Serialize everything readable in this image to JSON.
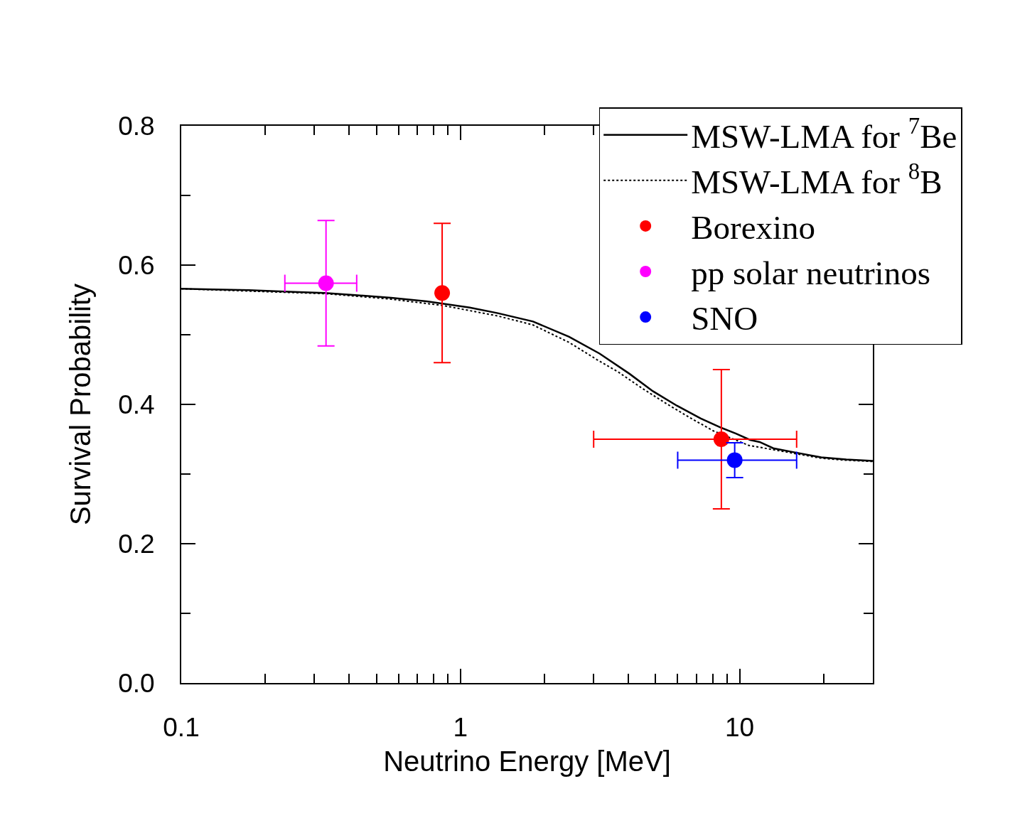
{
  "chart_data": {
    "type": "line",
    "xlabel": "Neutrino Energy [MeV]",
    "ylabel": "Survival Probability",
    "log": "x",
    "xlim": [
      0.1,
      30
    ],
    "ylim": [
      0,
      0.8
    ],
    "xticks": [
      0.1,
      {
        "value": 0.2,
        "label": null
      },
      {
        "value": 0.3,
        "label": null
      },
      {
        "value": 0.4,
        "label": null
      },
      {
        "value": 0.5,
        "label": null
      },
      {
        "value": 0.6,
        "label": null
      },
      {
        "value": 0.7,
        "label": null
      },
      {
        "value": 0.8,
        "label": null
      },
      {
        "value": 0.9,
        "label": null
      },
      1,
      {
        "value": 2,
        "label": null
      },
      {
        "value": 3,
        "label": null
      },
      {
        "value": 4,
        "label": null
      },
      {
        "value": 5,
        "label": null
      },
      {
        "value": 6,
        "label": null
      },
      {
        "value": 7,
        "label": null
      },
      {
        "value": 8,
        "label": null
      },
      {
        "value": 9,
        "label": null
      },
      10,
      {
        "value": 20,
        "label": null
      }
    ],
    "yticks": [
      {
        "value": 0,
        "label": "0.0"
      },
      {
        "value": 0.1,
        "label": null
      },
      0.2,
      {
        "value": 0.3,
        "label": null
      },
      0.4,
      {
        "value": 0.5,
        "label": null
      },
      0.6,
      {
        "value": 0.7,
        "label": null
      },
      0.8
    ],
    "legend": "top right",
    "series": [
      {
        "name": "MSW-LMA for $^{7}$Be",
        "color": "#000000",
        "line_style": "solid",
        "x": [
          0.1,
          0.13,
          0.175,
          0.234,
          0.327,
          0.421,
          0.565,
          0.757,
          1.08,
          1.36,
          1.82,
          2.45,
          3.15,
          4.03,
          4.89,
          5.97,
          7.24,
          8.53,
          9.71,
          10.9,
          11.8,
          13.2,
          15.8,
          19.6,
          24.1,
          30
        ],
        "values": [
          0.566,
          0.565,
          0.564,
          0.562,
          0.56,
          0.557,
          0.553,
          0.548,
          0.539,
          0.531,
          0.519,
          0.497,
          0.473,
          0.444,
          0.419,
          0.398,
          0.38,
          0.367,
          0.358,
          0.349,
          0.346,
          0.337,
          0.331,
          0.324,
          0.321,
          0.319
        ]
      },
      {
        "name": "MSW-LMA for $^{8}$B",
        "color": "#000000",
        "line_style": "dotted",
        "x": [
          0.1,
          0.327,
          0.565,
          0.866,
          1.36,
          1.82,
          2.45,
          3.09,
          3.69,
          4.48,
          5.47,
          6.63,
          8.05,
          10.8,
          13.2,
          16.0,
          19.4,
          23.7,
          30
        ],
        "values": [
          0.566,
          0.559,
          0.551,
          0.542,
          0.527,
          0.514,
          0.489,
          0.464,
          0.446,
          0.423,
          0.401,
          0.381,
          0.362,
          0.341,
          0.335,
          0.329,
          0.323,
          0.32,
          0.318
        ]
      },
      {
        "name": "Borexino",
        "type": "scatter",
        "marker": "circle",
        "color": "#ff0000",
        "x": [
          0.86,
          8.6
        ],
        "values": [
          0.56,
          0.35
        ],
        "errors": [
          0.1,
          0.1
        ],
        "xerrors": [
          null,
          [
            3,
            16
          ]
        ]
      },
      {
        "name": "pp solar neutrinos",
        "type": "scatter",
        "marker": "circle",
        "color": "#ff00ff",
        "x": [
          0.33
        ],
        "values": [
          0.574
        ],
        "errors": [
          0.09
        ],
        "xerrors": [
          0.095
        ]
      },
      {
        "name": "SNO",
        "type": "scatter",
        "marker": "circle",
        "color": "#0000ff",
        "x": [
          9.6
        ],
        "values": [
          0.32
        ],
        "errors": [
          0.025
        ],
        "xerrors": [
          [
            6,
            16
          ]
        ]
      }
    ]
  }
}
